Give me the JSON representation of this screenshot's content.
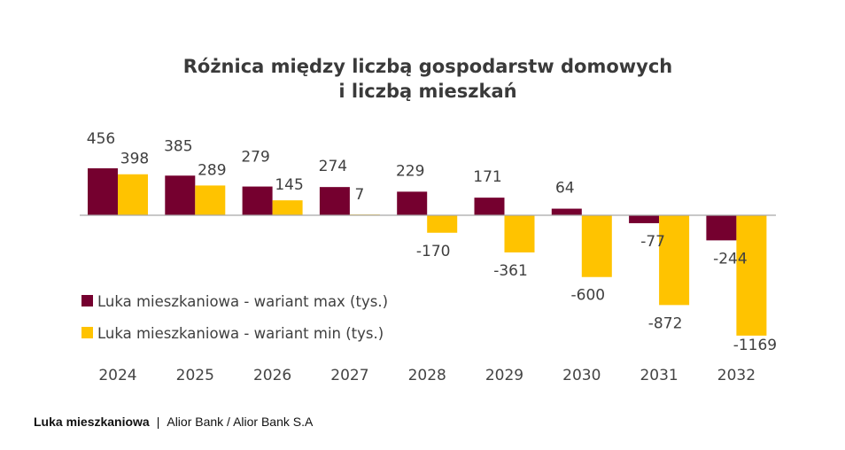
{
  "chart_data": {
    "type": "bar",
    "title": "Różnica między liczbą gospodarstw domowych",
    "title_line2": "i liczbą mieszkań",
    "categories": [
      "2024",
      "2025",
      "2026",
      "2027",
      "2028",
      "2029",
      "2030",
      "2031",
      "2032"
    ],
    "series": [
      {
        "name": "Luka mieszkaniowa - wariant max (tys.)",
        "color": "#75002f",
        "values": [
          456,
          385,
          279,
          274,
          229,
          171,
          64,
          -77,
          -244
        ]
      },
      {
        "name": "Luka mieszkaniowa - wariant min (tys.)",
        "color": "#ffc300",
        "values": [
          398,
          289,
          145,
          7,
          -170,
          -361,
          -600,
          -872,
          -1169
        ]
      }
    ],
    "xlabel": "",
    "ylabel": "",
    "ylim": [
      -1169,
      456
    ],
    "grid": false,
    "legend_position": "bottom-left inside plot",
    "data_labels": true
  },
  "caption": {
    "title": "Luka mieszkaniowa",
    "separator": "|",
    "source": "Alior Bank / Alior Bank S.A"
  }
}
